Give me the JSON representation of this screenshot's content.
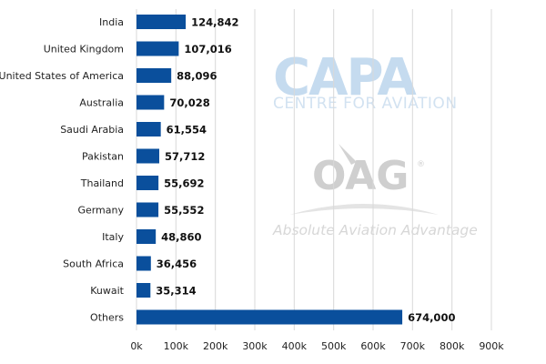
{
  "chart_data": {
    "type": "bar",
    "orientation": "horizontal",
    "categories": [
      "India",
      "United Kingdom",
      "United States of America",
      "Australia",
      "Saudi Arabia",
      "Pakistan",
      "Thailand",
      "Germany",
      "Italy",
      "South Africa",
      "Kuwait",
      "Others"
    ],
    "values": [
      124842,
      107016,
      88096,
      70028,
      61554,
      57712,
      55692,
      55552,
      48860,
      36456,
      35314,
      674000
    ],
    "value_labels": [
      "124,842",
      "107,016",
      "88,096",
      "70,028",
      "61,554",
      "57,712",
      "55,692",
      "55,552",
      "48,860",
      "36,456",
      "35,314",
      "674,000"
    ],
    "xlim": [
      0,
      900000
    ],
    "xticks": [
      0,
      100000,
      200000,
      300000,
      400000,
      500000,
      600000,
      700000,
      800000,
      900000
    ],
    "xtick_labels": [
      "0k",
      "100k",
      "200k",
      "300k",
      "400k",
      "500k",
      "600k",
      "700k",
      "800k",
      "900k"
    ],
    "grid": true,
    "bar_color": "#0a4f9c",
    "grid_color": "#d9d9d9"
  },
  "watermarks": {
    "capa_logo": "CAPA",
    "capa_tagline": "CENTRE FOR AVIATION",
    "oag_logo": "OAG",
    "oag_mark": "®",
    "oag_tagline": "Absolute Aviation Advantage"
  }
}
